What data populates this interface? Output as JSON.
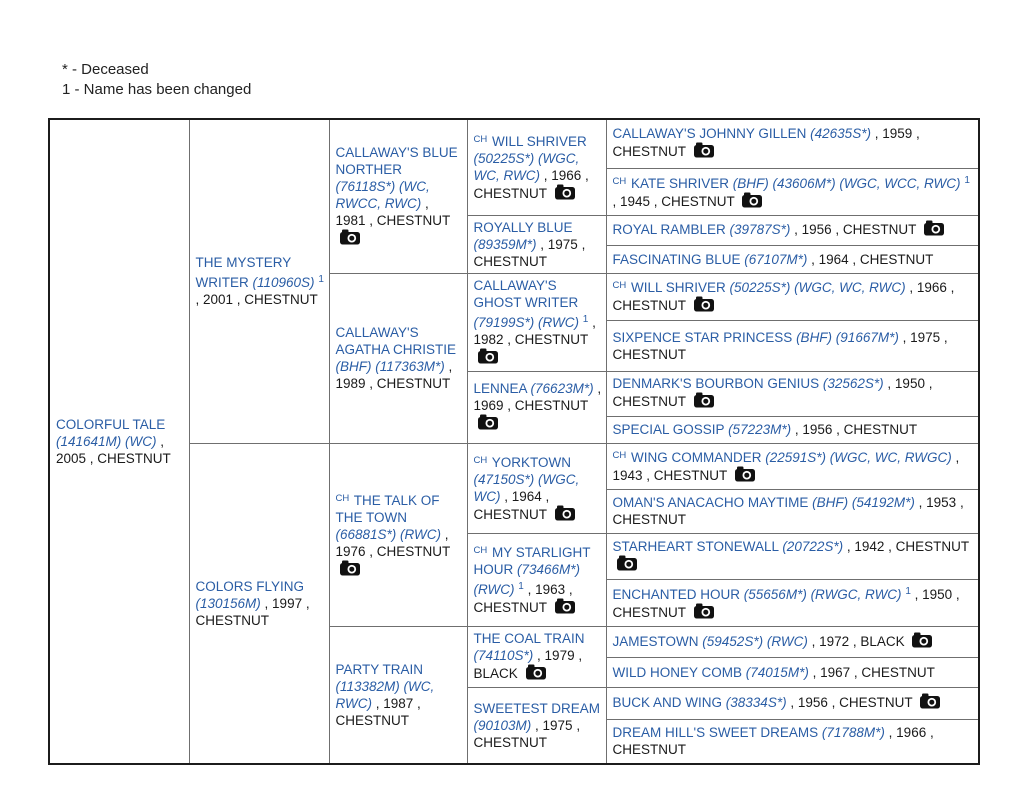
{
  "legend": {
    "line1": "* - Deceased",
    "line2": "1 - Name has been changed"
  },
  "colors": {
    "link_blue": "#2a5da5",
    "text_black": "#1a1a1a",
    "border_inner": "#6f6f6f",
    "border_outer": "#1c1c1c",
    "camera_icon": "#111111"
  },
  "pedigree": {
    "champion_prefix": "CH",
    "name_changed_marker": "1",
    "cells": [
      {
        "ch": false,
        "name": "COLORFUL TALE",
        "reg": "(141641M) (WC)",
        "sup": false,
        "rest": " , 2005 , CHESTNUT",
        "camera": false
      },
      {
        "ch": false,
        "name": "THE MYSTERY WRITER",
        "reg": "(110960S)",
        "sup": true,
        "rest": " , 2001 , CHESTNUT",
        "camera": false
      },
      {
        "ch": false,
        "name": "COLORS FLYING",
        "reg": "(130156M)",
        "sup": false,
        "rest": " , 1997 , CHESTNUT",
        "camera": false
      },
      {
        "ch": false,
        "name": "CALLAWAY'S BLUE NORTHER",
        "reg": "(76118S*) (WC, RWCC, RWC)",
        "sup": false,
        "rest": " , 1981 , CHESTNUT",
        "camera": true
      },
      {
        "ch": false,
        "name": "CALLAWAY'S AGATHA CHRISTIE",
        "reg": "(BHF) (117363M*)",
        "sup": false,
        "rest": " , 1989 , CHESTNUT",
        "camera": false
      },
      {
        "ch": true,
        "name": "THE TALK OF THE TOWN",
        "reg": "(66881S*) (RWC)",
        "sup": false,
        "rest": " , 1976 , CHESTNUT",
        "camera": true
      },
      {
        "ch": false,
        "name": "PARTY TRAIN",
        "reg": "(113382M) (WC, RWC)",
        "sup": false,
        "rest": " , 1987 , CHESTNUT",
        "camera": false
      },
      {
        "ch": true,
        "name": "WILL SHRIVER",
        "reg": "(50225S*) (WGC, WC, RWC)",
        "sup": false,
        "rest": " , 1966 , CHESTNUT",
        "camera": true
      },
      {
        "ch": false,
        "name": "ROYALLY BLUE",
        "reg": "(89359M*)",
        "sup": false,
        "rest": " , 1975 , CHESTNUT",
        "camera": false
      },
      {
        "ch": false,
        "name": "CALLAWAY'S GHOST WRITER",
        "reg": "(79199S*) (RWC)",
        "sup": true,
        "rest": " , 1982 , CHESTNUT",
        "camera": true
      },
      {
        "ch": false,
        "name": "LENNEA",
        "reg": "(76623M*)",
        "sup": false,
        "rest": " , 1969 , CHESTNUT",
        "camera": true
      },
      {
        "ch": true,
        "name": "YORKTOWN",
        "reg": "(47150S*) (WGC, WC)",
        "sup": false,
        "rest": " , 1964 , CHESTNUT",
        "camera": true
      },
      {
        "ch": true,
        "name": "MY STARLIGHT HOUR",
        "reg": "(73466M*) (RWC)",
        "sup": true,
        "rest": " , 1963 , CHESTNUT",
        "camera": true
      },
      {
        "ch": false,
        "name": "THE COAL TRAIN",
        "reg": "(74110S*)",
        "sup": false,
        "rest": " , 1979 , BLACK",
        "camera": true
      },
      {
        "ch": false,
        "name": "SWEETEST DREAM",
        "reg": "(90103M)",
        "sup": false,
        "rest": " , 1975 , CHESTNUT",
        "camera": false
      },
      {
        "ch": false,
        "name": "CALLAWAY'S JOHNNY GILLEN",
        "reg": "(42635S*)",
        "sup": false,
        "rest": " , 1959 , CHESTNUT",
        "camera": true
      },
      {
        "ch": true,
        "name": "KATE SHRIVER",
        "reg": "(BHF) (43606M*) (WGC, WCC, RWC)",
        "sup": true,
        "rest": " , 1945 , CHESTNUT",
        "camera": true
      },
      {
        "ch": false,
        "name": "ROYAL RAMBLER",
        "reg": "(39787S*)",
        "sup": false,
        "rest": " , 1956 , CHESTNUT",
        "camera": true
      },
      {
        "ch": false,
        "name": "FASCINATING BLUE",
        "reg": "(67107M*)",
        "sup": false,
        "rest": " , 1964 , CHESTNUT",
        "camera": false
      },
      {
        "ch": true,
        "name": "WILL SHRIVER",
        "reg": "(50225S*) (WGC, WC, RWC)",
        "sup": false,
        "rest": " , 1966 , CHESTNUT",
        "camera": true
      },
      {
        "ch": false,
        "name": "SIXPENCE STAR PRINCESS",
        "reg": "(BHF) (91667M*)",
        "sup": false,
        "rest": " , 1975 , CHESTNUT",
        "camera": false
      },
      {
        "ch": false,
        "name": "DENMARK'S BOURBON GENIUS",
        "reg": "(32562S*)",
        "sup": false,
        "rest": " , 1950 , CHESTNUT",
        "camera": true
      },
      {
        "ch": false,
        "name": "SPECIAL GOSSIP",
        "reg": "(57223M*)",
        "sup": false,
        "rest": " , 1956 , CHESTNUT",
        "camera": false
      },
      {
        "ch": true,
        "name": "WING COMMANDER",
        "reg": "(22591S*) (WGC, WC, RWGC)",
        "sup": false,
        "rest": " , 1943 , CHESTNUT",
        "camera": true
      },
      {
        "ch": false,
        "name": "OMAN'S ANACACHO MAYTIME",
        "reg": "(BHF) (54192M*)",
        "sup": false,
        "rest": " , 1953 , CHESTNUT",
        "camera": false
      },
      {
        "ch": false,
        "name": "STARHEART STONEWALL",
        "reg": "(20722S*)",
        "sup": false,
        "rest": " , 1942 , CHESTNUT",
        "camera": true
      },
      {
        "ch": false,
        "name": "ENCHANTED HOUR",
        "reg": "(55656M*) (RWGC, RWC)",
        "sup": true,
        "rest": " , 1950 , CHESTNUT",
        "camera": true
      },
      {
        "ch": false,
        "name": "JAMESTOWN",
        "reg": "(59452S*) (RWC)",
        "sup": false,
        "rest": " , 1972 , BLACK",
        "camera": true
      },
      {
        "ch": false,
        "name": "WILD HONEY COMB",
        "reg": "(74015M*)",
        "sup": false,
        "rest": " , 1967 , CHESTNUT",
        "camera": false
      },
      {
        "ch": false,
        "name": "BUCK AND WING",
        "reg": "(38334S*)",
        "sup": false,
        "rest": " , 1956 , CHESTNUT",
        "camera": true
      },
      {
        "ch": false,
        "name": "DREAM HILL'S SWEET DREAMS",
        "reg": "(71788M*)",
        "sup": false,
        "rest": " , 1966 , CHESTNUT",
        "camera": false
      }
    ]
  }
}
